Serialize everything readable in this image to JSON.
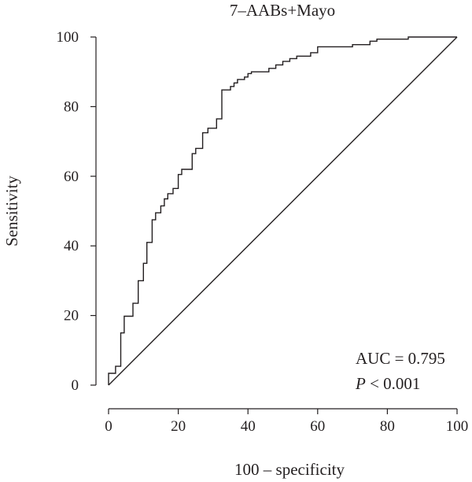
{
  "chart_data": {
    "type": "line",
    "title": "7–AABs+Mayo",
    "xlabel": "100 – specificity",
    "ylabel": "Sensitivity",
    "xlim": [
      0,
      100
    ],
    "ylim": [
      0,
      100
    ],
    "xticks": [
      0,
      20,
      40,
      60,
      80,
      100
    ],
    "yticks": [
      0,
      20,
      40,
      60,
      80,
      100
    ],
    "grid": false,
    "annotations": {
      "auc_text": "AUC = 0.795",
      "p_letter": "P",
      "p_rest": " < 0.001"
    },
    "series": [
      {
        "style": "step",
        "points": [
          [
            0,
            0
          ],
          [
            0,
            3.4
          ],
          [
            2,
            3.4
          ],
          [
            2,
            5.4
          ],
          [
            3.5,
            5.4
          ],
          [
            3.5,
            15
          ],
          [
            4.5,
            15
          ],
          [
            4.5,
            19.8
          ],
          [
            7,
            19.8
          ],
          [
            7,
            23.5
          ],
          [
            8.5,
            23.5
          ],
          [
            8.5,
            30
          ],
          [
            10,
            30
          ],
          [
            10,
            35
          ],
          [
            11,
            35
          ],
          [
            11,
            41
          ],
          [
            12.5,
            41
          ],
          [
            12.5,
            47.5
          ],
          [
            13.5,
            47.5
          ],
          [
            13.5,
            49.5
          ],
          [
            15,
            49.5
          ],
          [
            15,
            51.5
          ],
          [
            16,
            51.5
          ],
          [
            16,
            53.5
          ],
          [
            17,
            53.5
          ],
          [
            17,
            55
          ],
          [
            18.5,
            55
          ],
          [
            18.5,
            56.5
          ],
          [
            20,
            56.5
          ],
          [
            20,
            60.5
          ],
          [
            21,
            60.5
          ],
          [
            21,
            62
          ],
          [
            24,
            62
          ],
          [
            24,
            66.5
          ],
          [
            25,
            66.5
          ],
          [
            25,
            68
          ],
          [
            27,
            68
          ],
          [
            27,
            72.5
          ],
          [
            28.5,
            72.5
          ],
          [
            28.5,
            73.8
          ],
          [
            31,
            73.8
          ],
          [
            31,
            76.5
          ],
          [
            32.5,
            76.5
          ],
          [
            32.5,
            84.8
          ],
          [
            35,
            84.8
          ],
          [
            35,
            85.8
          ],
          [
            36,
            85.8
          ],
          [
            36,
            86.8
          ],
          [
            37,
            86.8
          ],
          [
            37,
            87.8
          ],
          [
            39,
            87.8
          ],
          [
            39,
            88.5
          ],
          [
            40,
            88.5
          ],
          [
            40,
            89.5
          ],
          [
            41,
            89.5
          ],
          [
            41,
            90
          ],
          [
            46,
            90
          ],
          [
            46,
            91
          ],
          [
            48,
            91
          ],
          [
            48,
            92
          ],
          [
            50,
            92
          ],
          [
            50,
            93
          ],
          [
            52,
            93
          ],
          [
            52,
            93.8
          ],
          [
            54,
            93.8
          ],
          [
            54,
            94.5
          ],
          [
            58,
            94.5
          ],
          [
            58,
            95.5
          ],
          [
            60,
            95.5
          ],
          [
            60,
            97.2
          ],
          [
            70,
            97.2
          ],
          [
            70,
            97.8
          ],
          [
            75,
            97.8
          ],
          [
            75,
            98.8
          ],
          [
            77,
            98.8
          ],
          [
            77,
            99.4
          ],
          [
            86,
            99.4
          ],
          [
            86,
            100
          ],
          [
            100,
            100
          ]
        ]
      },
      {
        "style": "reference",
        "points": [
          [
            0,
            0
          ],
          [
            100,
            100
          ]
        ]
      }
    ]
  }
}
